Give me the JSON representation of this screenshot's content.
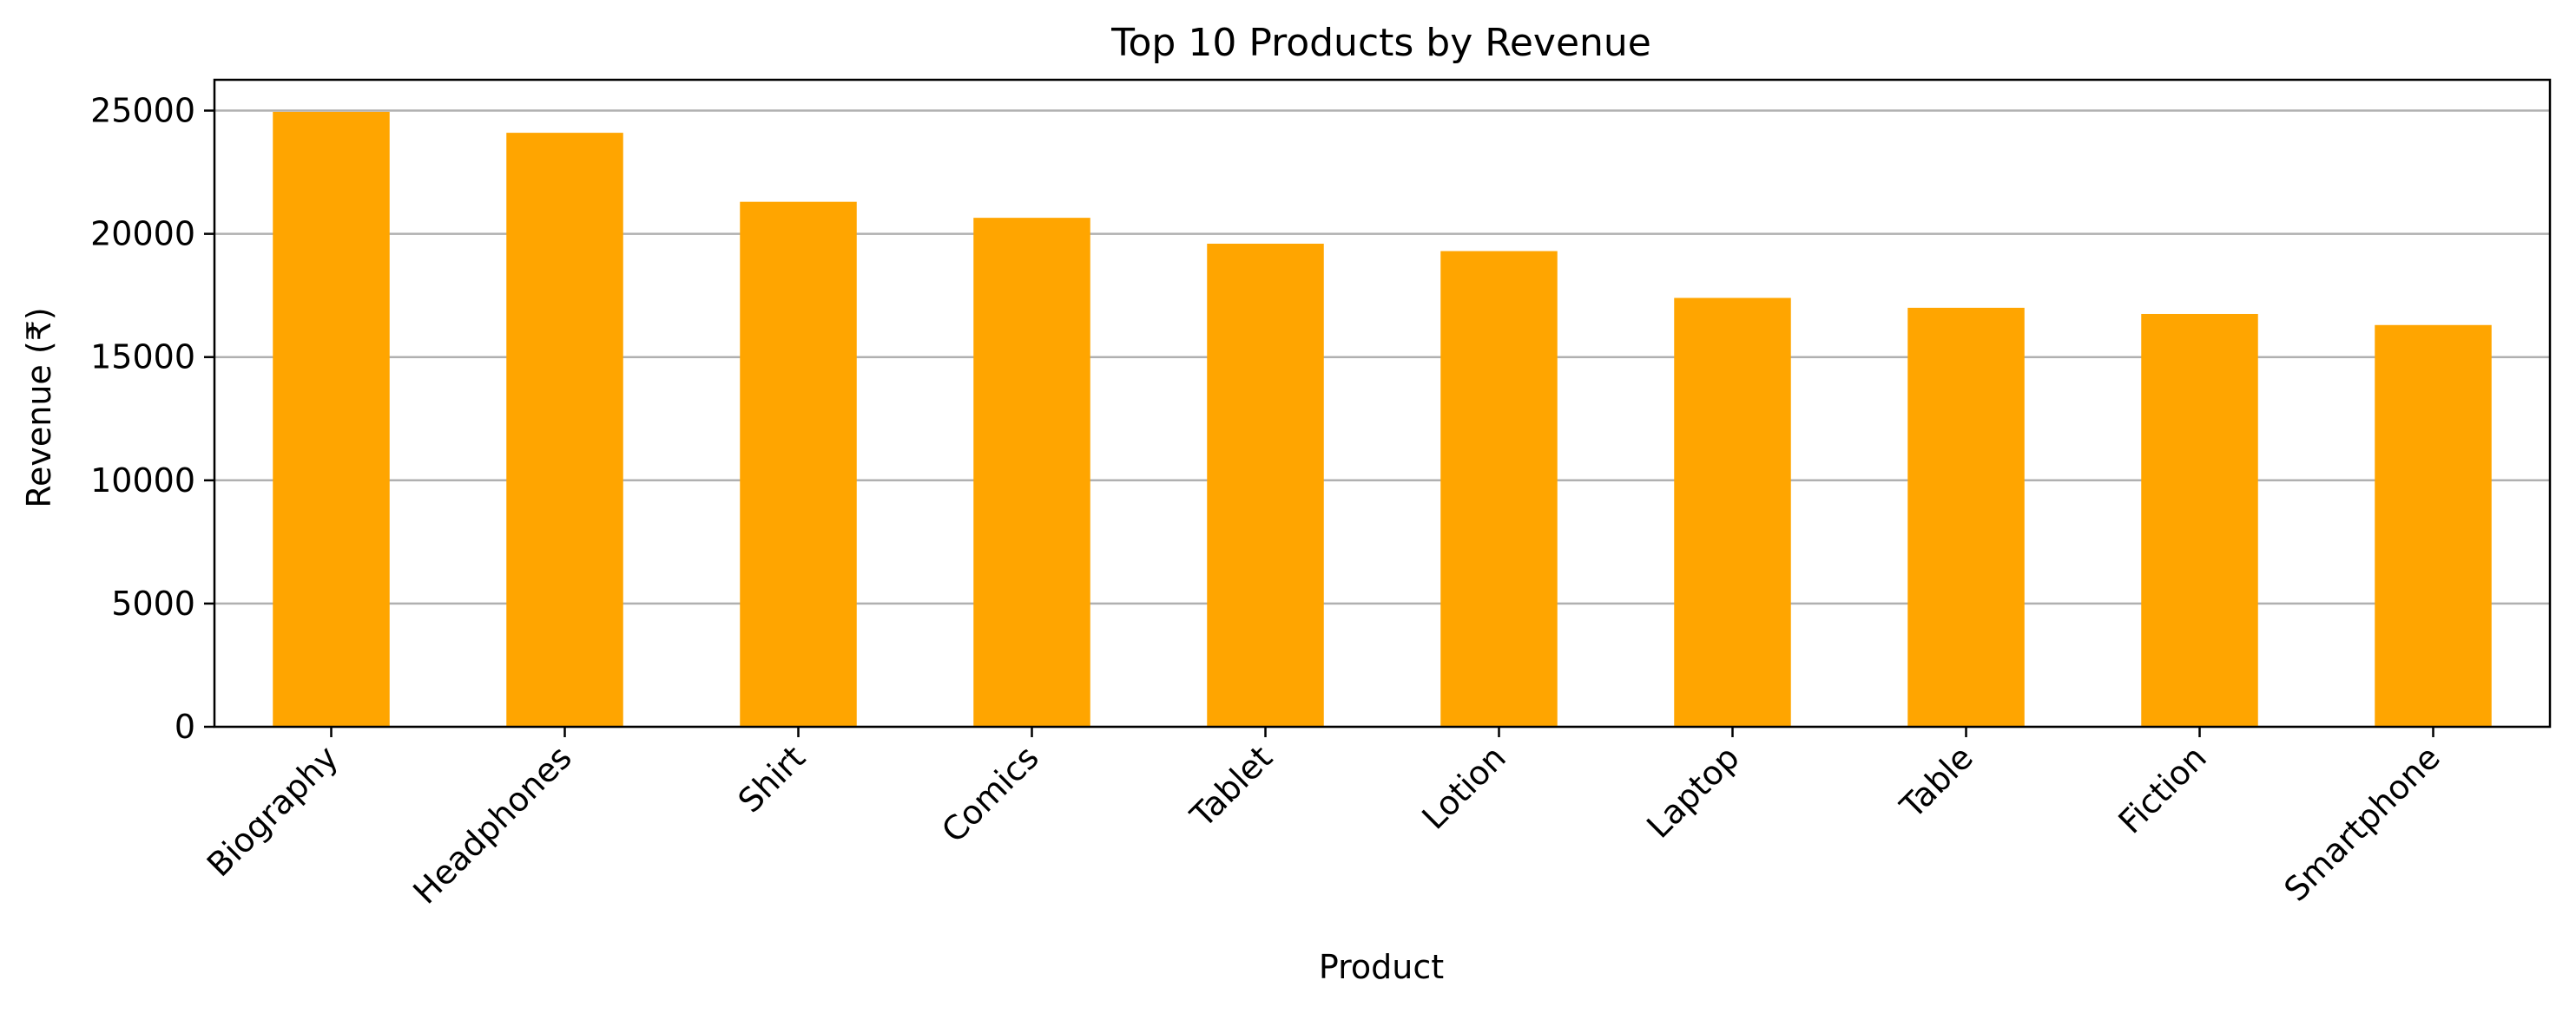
{
  "chart_data": {
    "type": "bar",
    "title": "Top 10 Products by Revenue",
    "xlabel": "Product",
    "ylabel": "Revenue (₹)",
    "categories": [
      "Biography",
      "Headphones",
      "Shirt",
      "Comics",
      "Tablet",
      "Lotion",
      "Laptop",
      "Table",
      "Fiction",
      "Smartphone"
    ],
    "values": [
      24950,
      24100,
      21300,
      20650,
      19600,
      19300,
      17400,
      17000,
      16750,
      16300
    ],
    "ylim": [
      0,
      26250
    ],
    "yticks": [
      0,
      5000,
      10000,
      15000,
      20000,
      25000
    ],
    "grid": "y-axis",
    "bar_color": "#FFA500",
    "xtick_rotation": 45
  }
}
